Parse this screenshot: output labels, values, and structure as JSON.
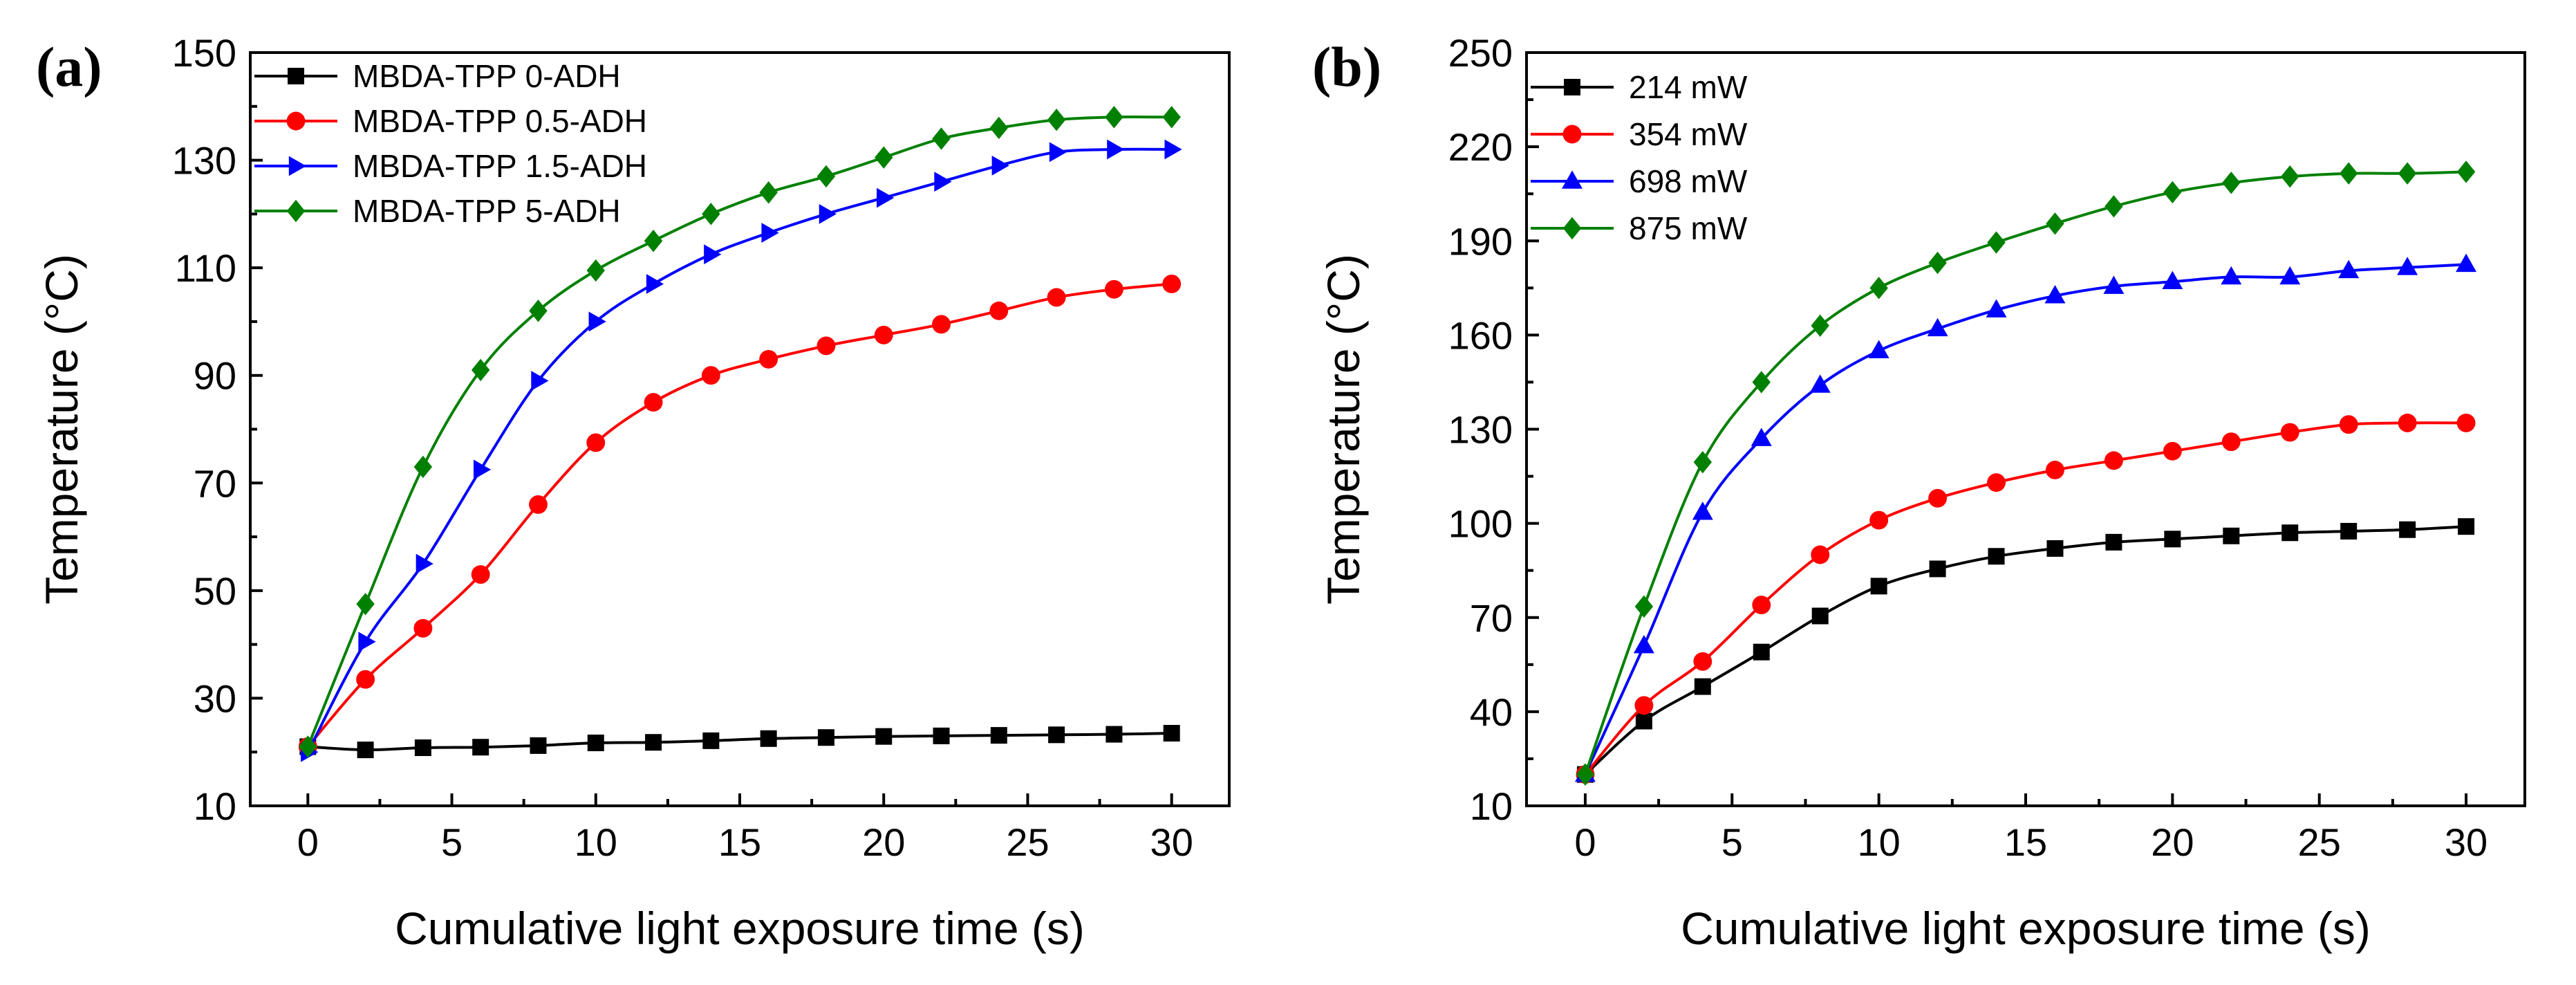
{
  "chart_data": [
    {
      "type": "line",
      "panel_label": "(a)",
      "xlabel": "Cumulative light exposure time (s)",
      "ylabel": "Temperature (°C)",
      "xlim": [
        -2,
        32
      ],
      "ylim": [
        10,
        150
      ],
      "xticks": [
        0,
        5,
        10,
        15,
        20,
        25,
        30
      ],
      "yticks": [
        10,
        30,
        50,
        70,
        90,
        110,
        130,
        150
      ],
      "x": [
        0,
        2,
        4,
        6,
        8,
        10,
        12,
        14,
        16,
        18,
        20,
        22,
        24,
        26,
        28,
        30
      ],
      "legend_position": "top-left",
      "series": [
        {
          "name": "MBDA-TPP 0-ADH",
          "color": "#000000",
          "marker": "square",
          "values": [
            21,
            20.4,
            20.8,
            20.9,
            21.2,
            21.7,
            21.8,
            22.1,
            22.5,
            22.7,
            22.9,
            23.0,
            23.1,
            23.2,
            23.3,
            23.5
          ]
        },
        {
          "name": "MBDA-TPP 0.5-ADH",
          "color": "#ff0000",
          "marker": "circle",
          "values": [
            21,
            33.5,
            43,
            53,
            66,
            77.5,
            85,
            90,
            93,
            95.5,
            97.5,
            99.5,
            102,
            104.5,
            106,
            107
          ]
        },
        {
          "name": "MBDA-TPP 1.5-ADH",
          "color": "#0000ff",
          "marker": "triangle-right",
          "values": [
            20,
            40.5,
            55,
            72.5,
            89,
            100,
            107,
            112.5,
            116.5,
            120,
            123,
            126,
            129,
            131.5,
            132,
            132
          ]
        },
        {
          "name": "MBDA-TPP 5-ADH",
          "color": "#008000",
          "marker": "diamond",
          "values": [
            21,
            47.5,
            73,
            91,
            102,
            109.5,
            115,
            120,
            124,
            127,
            130.5,
            134,
            136,
            137.5,
            138,
            138
          ]
        }
      ]
    },
    {
      "type": "line",
      "panel_label": "(b)",
      "xlabel": "Cumulative light exposure time (s)",
      "ylabel": "Temperature (°C)",
      "xlim": [
        -2,
        32
      ],
      "ylim": [
        10,
        250
      ],
      "xticks": [
        0,
        5,
        10,
        15,
        20,
        25,
        30
      ],
      "yticks": [
        10,
        40,
        70,
        100,
        130,
        160,
        190,
        220,
        250
      ],
      "x": [
        0,
        2,
        4,
        6,
        8,
        10,
        12,
        14,
        16,
        18,
        20,
        22,
        24,
        26,
        28,
        30
      ],
      "legend_position": "top-left",
      "series": [
        {
          "name": "214 mW",
          "color": "#000000",
          "marker": "square",
          "values": [
            20,
            37,
            48,
            59,
            70.5,
            80,
            85.5,
            89.5,
            92,
            94,
            95,
            96,
            97,
            97.5,
            98,
            99
          ]
        },
        {
          "name": "354 mW",
          "color": "#ff0000",
          "marker": "circle",
          "values": [
            20,
            42,
            56,
            74,
            90,
            101,
            108,
            113,
            117,
            120,
            123,
            126,
            129,
            131.5,
            132,
            132
          ]
        },
        {
          "name": "698 mW",
          "color": "#0000ff",
          "marker": "triangle-up",
          "values": [
            20,
            61,
            103.5,
            127,
            144,
            155,
            162,
            168,
            172.5,
            175.5,
            177,
            178.5,
            178.5,
            180.5,
            181.5,
            182.5
          ]
        },
        {
          "name": "875 mW",
          "color": "#008000",
          "marker": "diamond",
          "values": [
            20,
            73.5,
            119.5,
            145,
            163,
            175,
            183,
            189.5,
            195.5,
            201,
            205.5,
            208.5,
            210.5,
            211.5,
            211.5,
            212
          ]
        }
      ]
    }
  ]
}
